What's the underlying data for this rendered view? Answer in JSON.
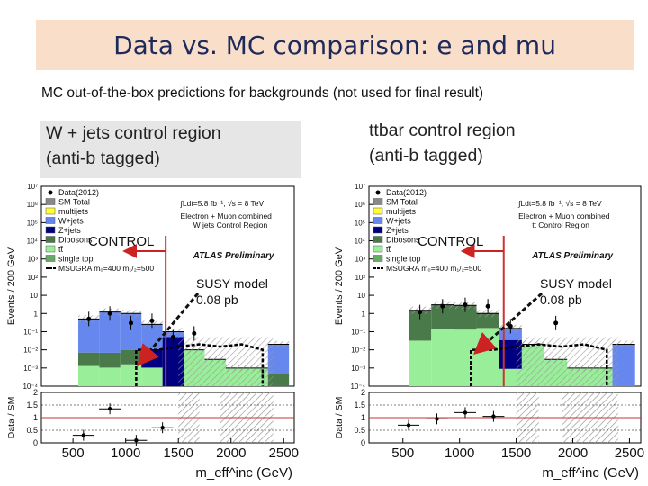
{
  "header": {
    "title": "Data vs. MC comparison: e and mu",
    "subtitle": "MC out-of-the-box predictions for backgrounds (not used for final result)"
  },
  "panels": {
    "left": {
      "heading_line1": "W + jets control region",
      "heading_line2": "(anti-b tagged)",
      "region_text": "W jets Control Region"
    },
    "right": {
      "heading_line1": "ttbar control region",
      "heading_line2": "(anti-b tagged)",
      "region_text": "tt Control Region"
    }
  },
  "annotations": {
    "control": "CONTROL",
    "susy_line1": "SUSY model",
    "susy_line2": "0.08 pb",
    "atlas": "ATLAS Preliminary",
    "lumi": "∫Ldt=5.8 fb⁻¹, √s = 8 TeV",
    "channel": "Electron + Muon combined",
    "signal_legend": "MSUGRA m₀=400 m₁/₂=500"
  },
  "legend": [
    "Data(2012)",
    "SM Total",
    "multijets",
    "W+jets",
    "Z+jets",
    "Dibosons",
    "tt̄",
    "single top"
  ],
  "colors": {
    "multijets": "#ffff33",
    "wjets": "#6688ee",
    "zjets": "#000080",
    "dibosons": "#4a7a4a",
    "ttbar": "#99ee99",
    "singletop": "#66aa66",
    "cut_line": "#cc3333",
    "arrow": "#cc2222"
  },
  "chart_data": [
    {
      "type": "bar",
      "name": "W + jets control region",
      "x": [
        250,
        450,
        650,
        850,
        1050,
        1250,
        1450,
        1650,
        1850,
        2050,
        2250,
        2450
      ],
      "xlabel": "m_eff^inc (GeV)",
      "ylabel": "Events / 200 GeV",
      "xlim": [
        200,
        2600
      ],
      "ylim": [
        0.0001,
        10000000
      ],
      "yscale": "log",
      "xticks": [
        500,
        1000,
        1500,
        2000,
        2500
      ],
      "yticks": [
        "10⁻⁴",
        "10⁻³",
        "10⁻²",
        "10⁻¹",
        "1",
        "10",
        "10²",
        "10³",
        "10⁴",
        "10⁵",
        "10⁶",
        "10⁷"
      ],
      "sm_total": [
        0,
        0,
        0.5,
        1.2,
        1.0,
        0.25,
        0.1,
        0.01,
        0.003,
        0.001,
        0.001,
        0.02
      ],
      "ratio": {
        "ylabel": "Data / SM",
        "ylim": [
          0,
          2
        ],
        "yticks": [
          "0",
          "0.5",
          "1",
          "1.5",
          "2"
        ],
        "x": [
          600,
          850,
          1100,
          1350
        ],
        "values": [
          0.3,
          1.35,
          0.1,
          0.6
        ]
      }
    },
    {
      "type": "bar",
      "name": "ttbar control region",
      "x": [
        250,
        450,
        650,
        850,
        1050,
        1250,
        1450,
        1650,
        1850,
        2050,
        2250,
        2450
      ],
      "xlabel": "m_eff^inc (GeV)",
      "ylabel": "Events / 200 GeV",
      "xlim": [
        200,
        2600
      ],
      "ylim": [
        0.0001,
        10000000
      ],
      "yscale": "log",
      "xticks": [
        500,
        1000,
        1500,
        2000,
        2500
      ],
      "yticks": [
        "10⁻⁴",
        "10⁻³",
        "10⁻²",
        "10⁻¹",
        "1",
        "10",
        "10²",
        "10³",
        "10⁴",
        "10⁵",
        "10⁶",
        "10⁷"
      ],
      "sm_total": [
        0,
        0,
        1.5,
        3.0,
        2.8,
        1.0,
        0.15,
        0.02,
        0.003,
        0.001,
        0.001,
        0.02
      ],
      "ratio": {
        "ylabel": "Data / SM",
        "ylim": [
          0,
          2
        ],
        "yticks": [
          "0",
          "0.5",
          "1",
          "1.5",
          "2"
        ],
        "x": [
          550,
          800,
          1050,
          1300
        ],
        "values": [
          0.7,
          0.95,
          1.2,
          1.05
        ]
      }
    }
  ]
}
